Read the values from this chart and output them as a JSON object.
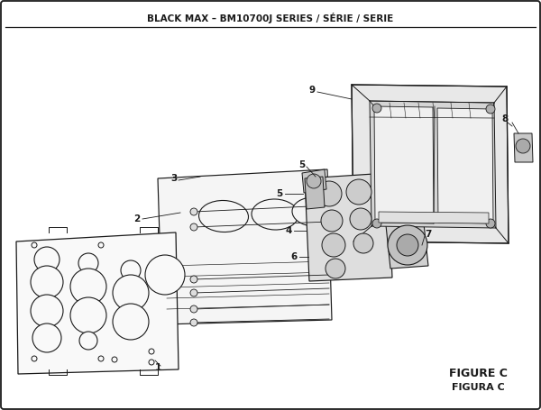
{
  "title": "BLACK MAX – BM10700J SERIES / SÉRIE / SERIE",
  "figure_label": "FIGURE C",
  "figura_label": "FIGURA C",
  "bg_color": "#ffffff",
  "line_color": "#1a1a1a",
  "lw_main": 0.85,
  "lw_thin": 0.5,
  "lw_label": 0.55
}
